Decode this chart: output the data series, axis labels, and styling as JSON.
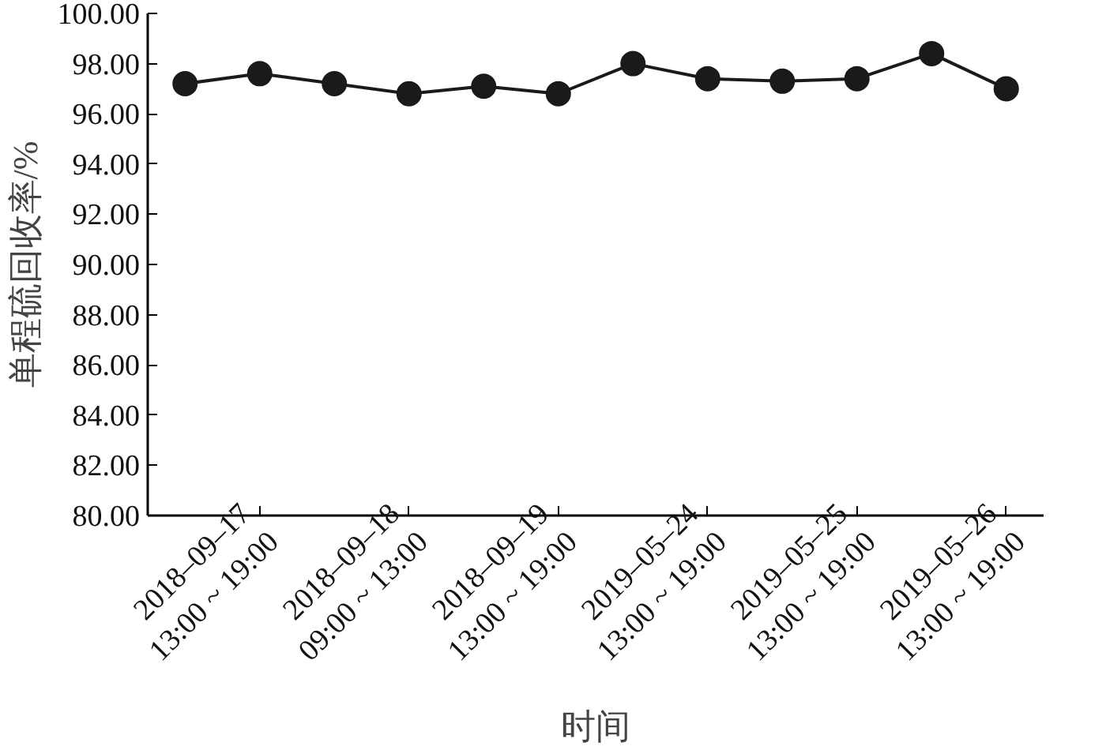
{
  "chart_data": {
    "type": "line",
    "xlabel": "时间",
    "ylabel": "单程硫回收率/%",
    "categories": [
      null,
      "2018–09–17\n13:00 ~ 19:00",
      null,
      "2018–09–18\n09:00 ~ 13:00",
      null,
      "2018–09–19\n13:00 ~ 19:00",
      null,
      "2019–05–24\n13:00 ~ 19:00",
      null,
      "2019–05–25\n13:00 ~ 19:00",
      null,
      "2019–05–26\n13:00 ~ 19:00"
    ],
    "series": [
      {
        "color": "#1a1a1a",
        "values": [
          97.2,
          97.6,
          97.2,
          96.8,
          97.1,
          96.8,
          98.0,
          97.4,
          97.3,
          97.4,
          98.4,
          97.0
        ]
      }
    ],
    "ylim": [
      80,
      100
    ],
    "yticks": [
      {
        "value": 80,
        "label": "80.00"
      },
      {
        "value": 82,
        "label": "82.00"
      },
      {
        "value": 84,
        "label": "84.00"
      },
      {
        "value": 86,
        "label": "86.00"
      },
      {
        "value": 88,
        "label": "88.00"
      },
      {
        "value": 90,
        "label": "90.00"
      },
      {
        "value": 92,
        "label": "92.00"
      },
      {
        "value": 94,
        "label": "94.00"
      },
      {
        "value": 96,
        "label": "96.00"
      },
      {
        "value": 98,
        "label": "98.00"
      },
      {
        "value": 100,
        "label": "100.00"
      }
    ],
    "grid": false,
    "marker": "circle",
    "line_style": "solid"
  }
}
